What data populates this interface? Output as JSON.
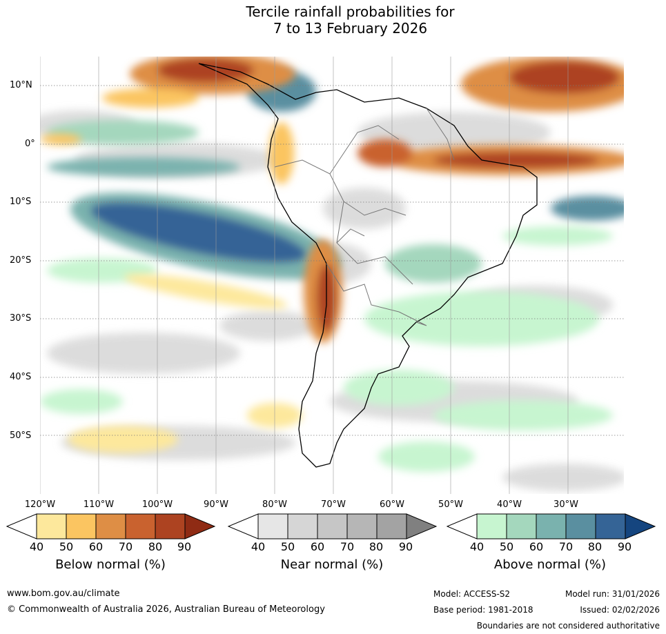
{
  "title_line1": "Tercile rainfall probabilities for",
  "title_line2": "7 to 13 February 2026",
  "lat_labels": [
    "10°N",
    "0°",
    "10°S",
    "20°S",
    "30°S",
    "40°S",
    "50°S"
  ],
  "lon_labels": [
    "120°W",
    "110°W",
    "100°W",
    "90°W",
    "80°W",
    "70°W",
    "60°W",
    "50°W",
    "40°W",
    "30°W"
  ],
  "colorbars": [
    {
      "title": "Below normal (%)",
      "ticks": [
        "40",
        "50",
        "60",
        "70",
        "80",
        "90"
      ],
      "colors": [
        "#ffffff",
        "#fde89c",
        "#fbc561",
        "#de8e45",
        "#c9622f",
        "#ad4321",
        "#8f2b14"
      ]
    },
    {
      "title": "Near normal (%)",
      "ticks": [
        "40",
        "50",
        "60",
        "70",
        "80",
        "90"
      ],
      "colors": [
        "#ffffff",
        "#e6e6e6",
        "#d6d6d6",
        "#c6c6c6",
        "#b6b6b6",
        "#a3a3a3",
        "#808080"
      ]
    },
    {
      "title": "Above normal (%)",
      "ticks": [
        "40",
        "50",
        "60",
        "70",
        "80",
        "90"
      ],
      "colors": [
        "#ffffff",
        "#c7f5d0",
        "#a4d7bd",
        "#7ab2ae",
        "#5a8fa0",
        "#356496",
        "#15457f"
      ]
    }
  ],
  "footer": {
    "url": "www.bom.gov.au/climate",
    "copyright": "© Commonwealth of Australia 2026, Australian Bureau of Meteorology",
    "model": "Model: ACCESS-S2",
    "model_run": "Model run: 31/01/2026",
    "base_period": "Base period: 1981-2018",
    "issued": "Issued: 02/02/2026",
    "disclaimer": "Boundaries are not considered authoritative"
  }
}
